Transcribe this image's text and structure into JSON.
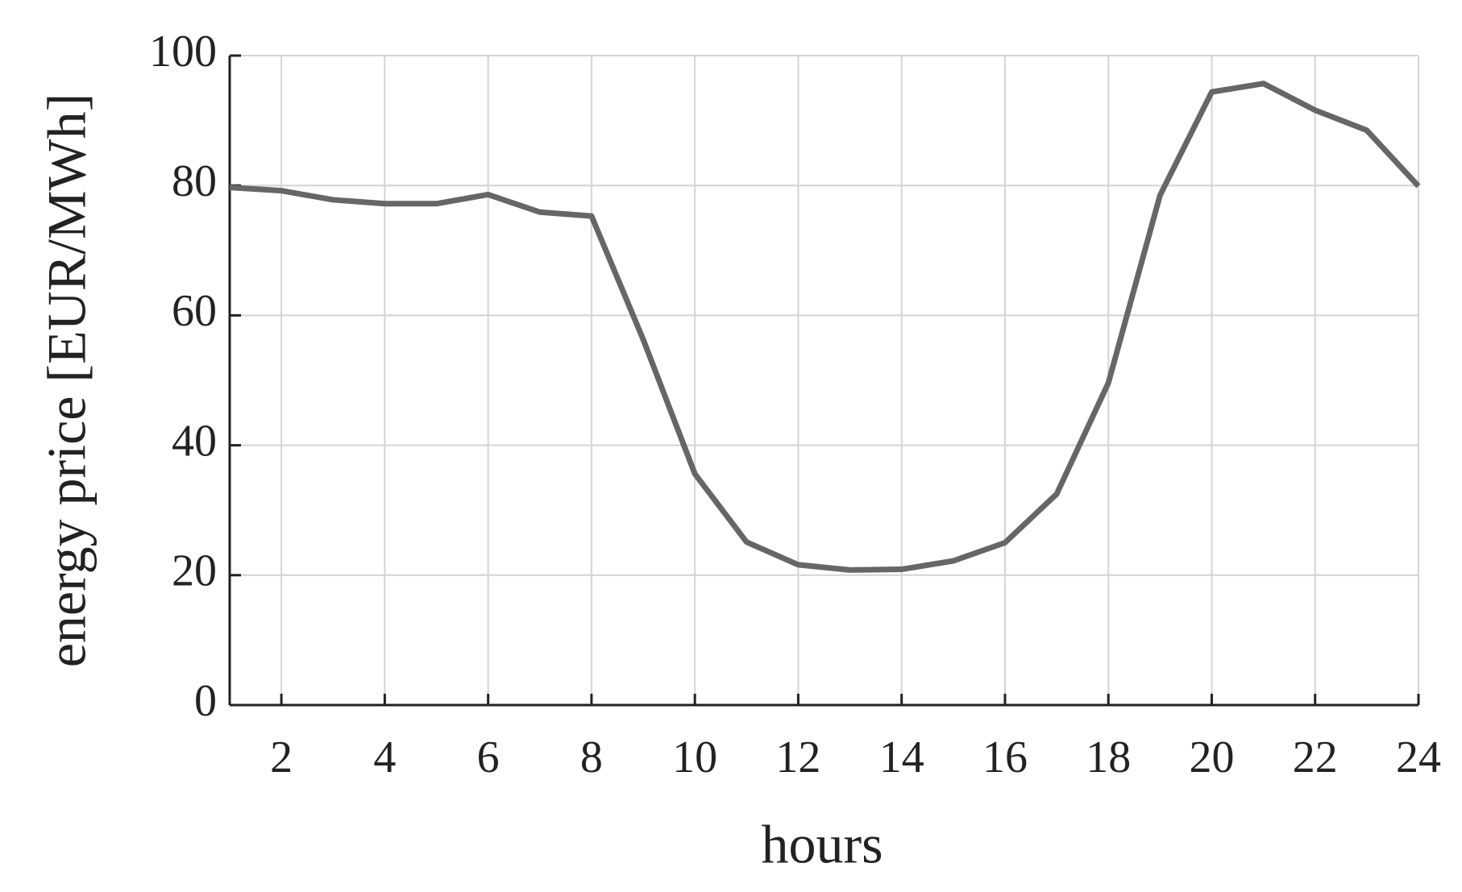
{
  "chart_data": {
    "type": "line",
    "x_label": "hours",
    "y_label": "energy price [EUR/MWh]",
    "x": [
      1,
      2,
      3,
      4,
      5,
      6,
      7,
      8,
      9,
      10,
      11,
      12,
      13,
      14,
      15,
      16,
      17,
      18,
      19,
      20,
      21,
      22,
      23,
      24
    ],
    "series": [
      {
        "color": "#666666",
        "values": [
          79.7,
          79.2,
          77.8,
          77.2,
          77.2,
          78.6,
          75.9,
          75.3,
          56.3,
          35.6,
          25.1,
          21.6,
          20.8,
          20.9,
          22.2,
          25.0,
          32.5,
          49.6,
          78.5,
          94.4,
          95.7,
          91.6,
          88.5,
          79.9
        ]
      }
    ],
    "xlim": [
      1,
      24
    ],
    "ylim": [
      0,
      100
    ],
    "xticks": [
      2,
      4,
      6,
      8,
      10,
      12,
      14,
      16,
      18,
      20,
      22,
      24
    ],
    "yticks": [
      0,
      20,
      40,
      60,
      80,
      100
    ],
    "grid": true
  }
}
